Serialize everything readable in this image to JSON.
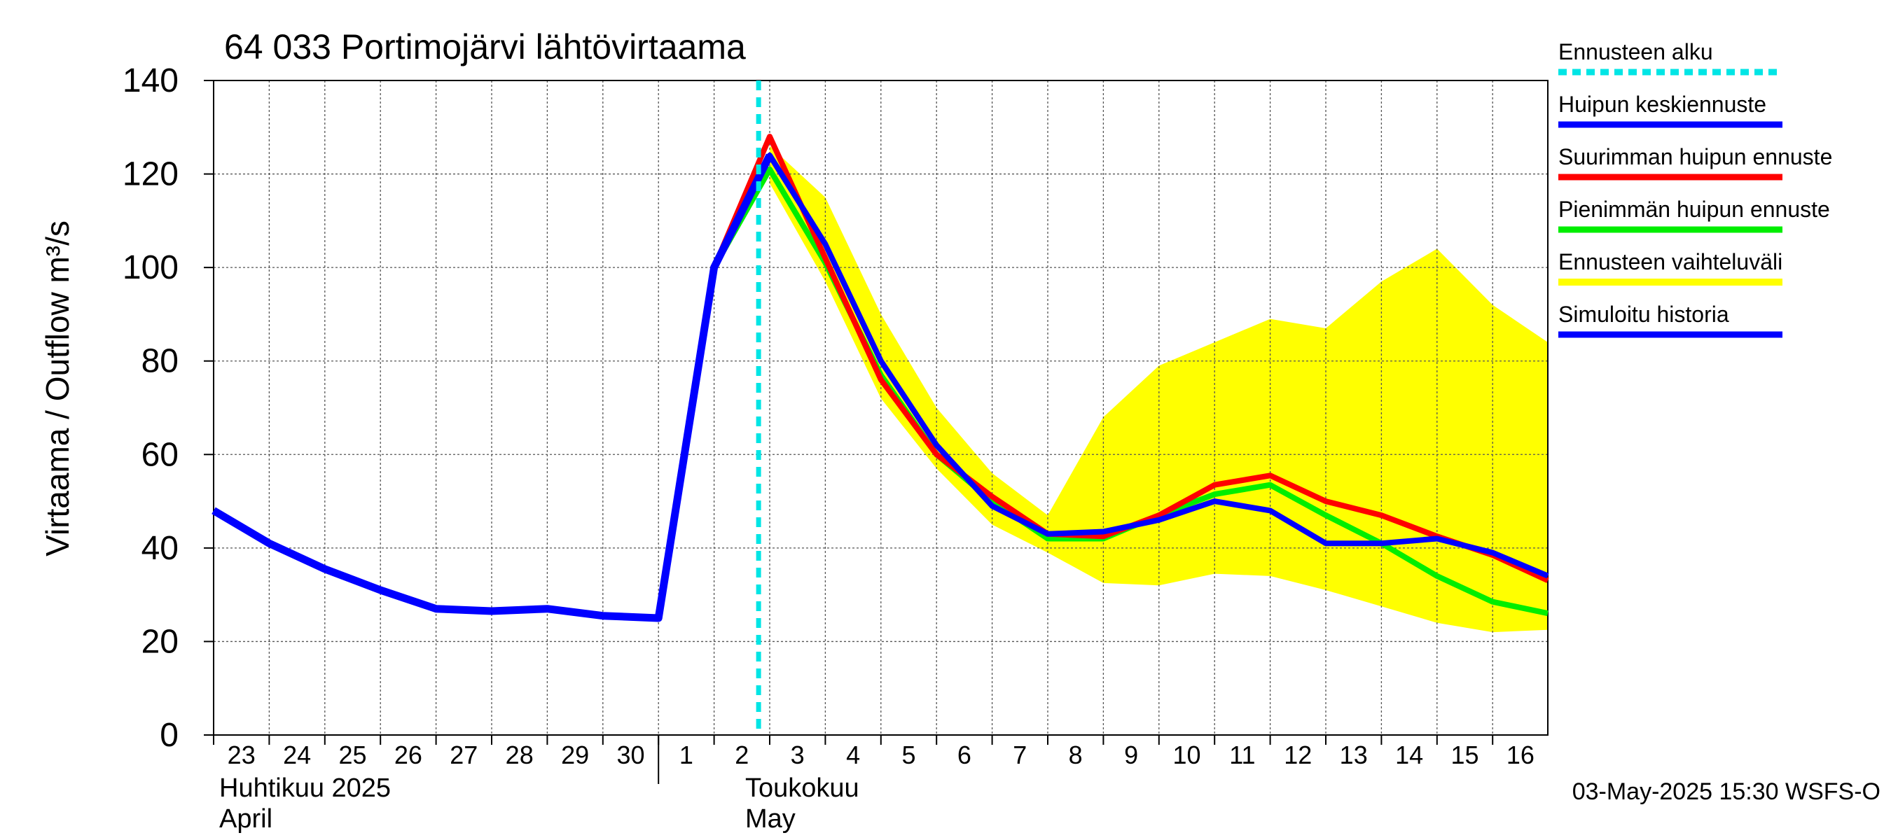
{
  "chart_data": {
    "type": "line",
    "title": "64 033 Portimojärvi lähtövirtaama",
    "ylabel": "Virtaama / Outflow    m³/s",
    "ylim": [
      0,
      140
    ],
    "yticks": [
      0,
      20,
      40,
      60,
      80,
      100,
      120,
      140
    ],
    "xlim": [
      "2025-04-23",
      "2025-05-16"
    ],
    "x_tick_labels": [
      "23",
      "24",
      "25",
      "26",
      "27",
      "28",
      "29",
      "30",
      "1",
      "2",
      "3",
      "4",
      "5",
      "6",
      "7",
      "8",
      "9",
      "10",
      "11",
      "12",
      "13",
      "14",
      "15",
      "16"
    ],
    "month_labels": [
      {
        "line1": "Huhtikuu  2025",
        "line2": "April"
      },
      {
        "line1": "Toukokuu",
        "line2": "May"
      }
    ],
    "grid": true,
    "legend_placement": "right",
    "forecast_start": "2025-05-03",
    "series": [
      {
        "name": "Ennusteen alku",
        "kind": "vline",
        "color": "#00e5e5",
        "x": "2025-05-03"
      },
      {
        "name": "Huipun keskiennuste",
        "kind": "line",
        "color": "#0000ff",
        "x": [
          "2025-05-02",
          "2025-05-03",
          "2025-05-04",
          "2025-05-05",
          "2025-05-06",
          "2025-05-07",
          "2025-05-08",
          "2025-05-09",
          "2025-05-10",
          "2025-05-11",
          "2025-05-12",
          "2025-05-13",
          "2025-05-14",
          "2025-05-15",
          "2025-05-16",
          "2025-05-17"
        ],
        "y": [
          100,
          124,
          105,
          80,
          62,
          49,
          43,
          43.5,
          46,
          50,
          48,
          41,
          41,
          42,
          39,
          34
        ]
      },
      {
        "name": "Suurimman huipun ennuste",
        "kind": "line",
        "color": "#ff0000",
        "x": [
          "2025-05-02",
          "2025-05-03",
          "2025-05-04",
          "2025-05-05",
          "2025-05-06",
          "2025-05-07",
          "2025-05-08",
          "2025-05-09",
          "2025-05-10",
          "2025-05-11",
          "2025-05-12",
          "2025-05-13",
          "2025-05-14",
          "2025-05-15",
          "2025-05-16",
          "2025-05-17"
        ],
        "y": [
          100,
          128,
          102,
          76,
          60,
          51,
          43,
          42.5,
          47,
          53.5,
          55.5,
          50,
          47,
          42.5,
          38.5,
          33
        ]
      },
      {
        "name": "Pienimmän huipun ennuste",
        "kind": "line",
        "color": "#00ee00",
        "x": [
          "2025-05-02",
          "2025-05-03",
          "2025-05-04",
          "2025-05-05",
          "2025-05-06",
          "2025-05-07",
          "2025-05-08",
          "2025-05-09",
          "2025-05-10",
          "2025-05-11",
          "2025-05-12",
          "2025-05-13",
          "2025-05-14",
          "2025-05-15",
          "2025-05-16",
          "2025-05-17"
        ],
        "y": [
          100,
          121,
          101,
          77,
          60,
          50,
          42,
          42,
          47,
          51.5,
          53.5,
          47,
          41,
          34,
          28.5,
          26
        ]
      },
      {
        "name": "Ennusteen vaihteluväli",
        "kind": "band",
        "color": "#ffff00",
        "x": [
          "2025-05-03",
          "2025-05-04",
          "2025-05-05",
          "2025-05-06",
          "2025-05-07",
          "2025-05-08",
          "2025-05-09",
          "2025-05-10",
          "2025-05-11",
          "2025-05-12",
          "2025-05-13",
          "2025-05-14",
          "2025-05-15",
          "2025-05-16",
          "2025-05-17"
        ],
        "upper": [
          126,
          115,
          90,
          70,
          56,
          47,
          68,
          79,
          84,
          89,
          87,
          97,
          104,
          92,
          84
        ],
        "lower": [
          118,
          97,
          72,
          57,
          45,
          39,
          32.5,
          32,
          34.5,
          34,
          31,
          27.5,
          24,
          22,
          22.5
        ]
      },
      {
        "name": "Simuloitu historia",
        "kind": "line",
        "color": "#0000ff",
        "x": [
          "2025-04-23",
          "2025-04-24",
          "2025-04-25",
          "2025-04-26",
          "2025-04-27",
          "2025-04-28",
          "2025-04-29",
          "2025-04-30",
          "2025-05-01",
          "2025-05-02",
          "2025-05-03"
        ],
        "y": [
          48,
          41,
          35.5,
          31,
          27,
          26.5,
          27,
          25.5,
          25,
          100,
          124
        ]
      }
    ]
  },
  "footer": {
    "timestamp": "03-May-2025 15:30 WSFS-O"
  }
}
